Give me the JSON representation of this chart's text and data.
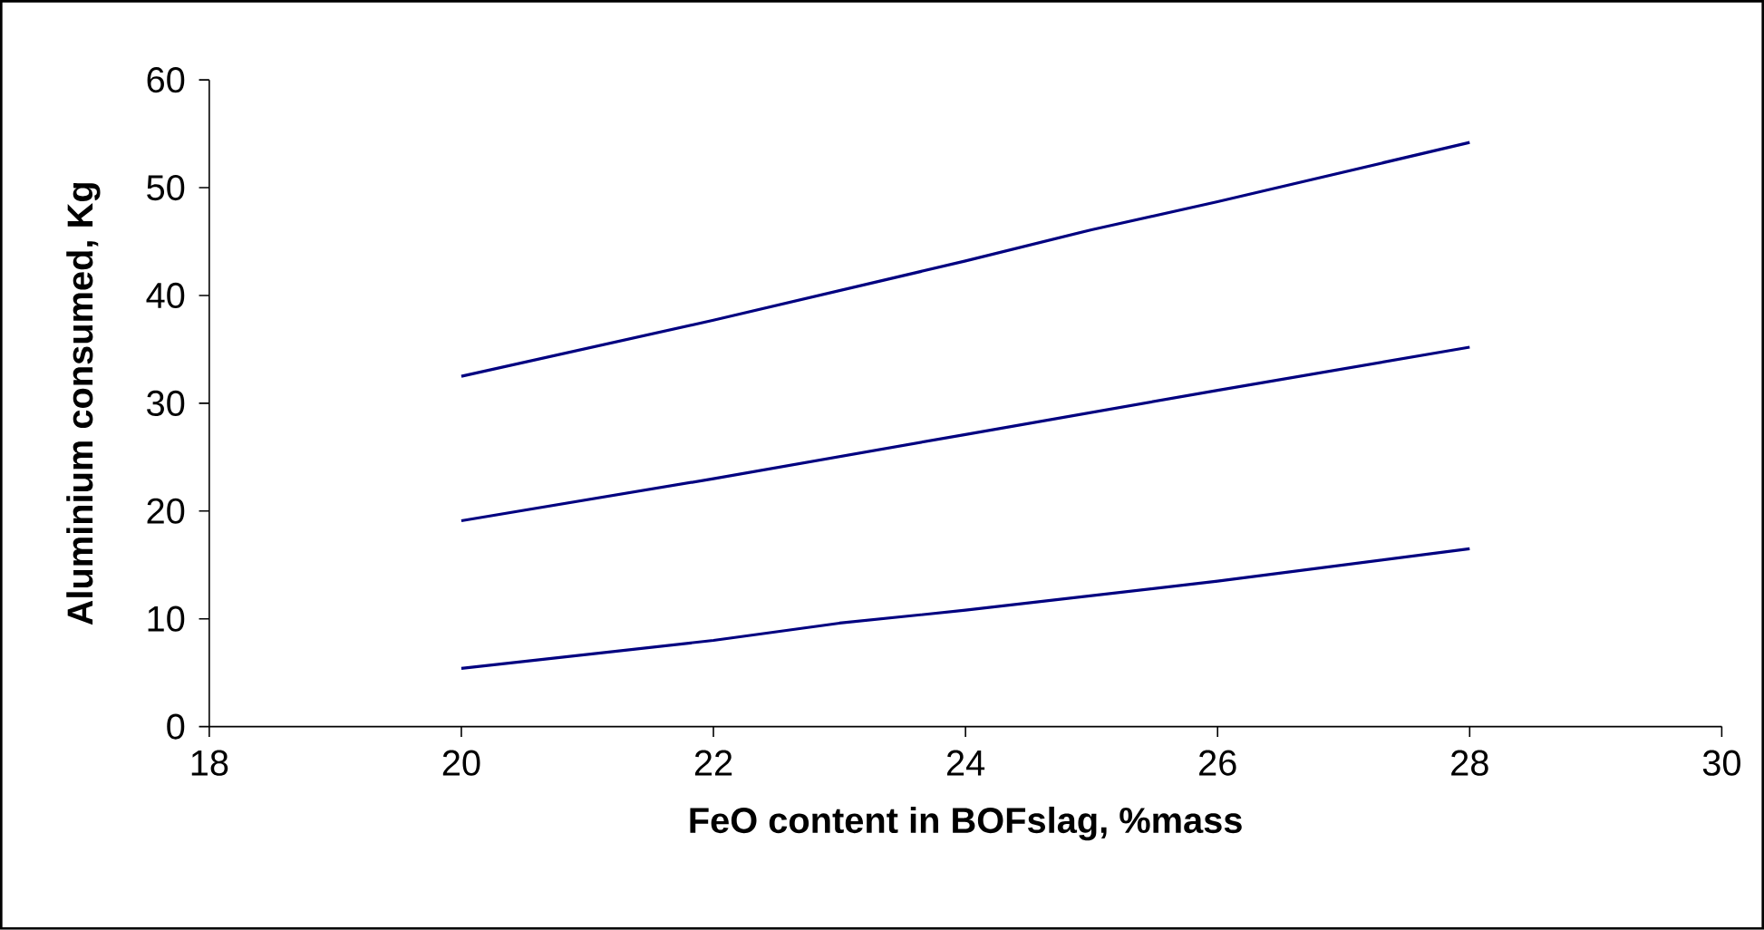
{
  "chart_data": {
    "type": "line",
    "xlabel": "FeO content in BOFslag, %mass",
    "ylabel": "Aluminium consumed, Kg",
    "xlim": [
      18,
      30
    ],
    "xticks": [
      18,
      20,
      22,
      24,
      26,
      28,
      30
    ],
    "ylim": [
      0,
      60
    ],
    "yticks": [
      0,
      10,
      20,
      30,
      40,
      50,
      60
    ],
    "grid": false,
    "marker": "none",
    "line_style": "solid",
    "series": [
      {
        "color": "#000080",
        "x": [
          20,
          22,
          24,
          25,
          26,
          28
        ],
        "values": [
          32.5,
          37.7,
          43.2,
          46.1,
          48.7,
          54.2
        ]
      },
      {
        "color": "#000080",
        "x": [
          20,
          22,
          24,
          26,
          28
        ],
        "values": [
          19.1,
          23.0,
          27.1,
          31.2,
          35.2
        ]
      },
      {
        "color": "#000080",
        "x": [
          20,
          22,
          23,
          24,
          26,
          28
        ],
        "values": [
          5.4,
          8.0,
          9.6,
          10.8,
          13.5,
          16.5
        ]
      }
    ]
  }
}
